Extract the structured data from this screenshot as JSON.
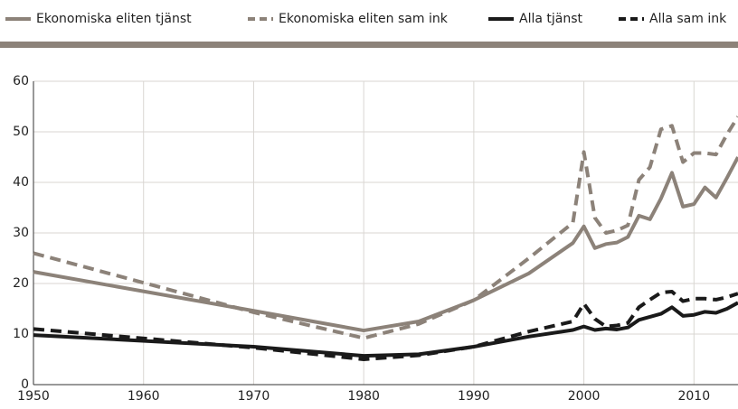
{
  "chart_data": {
    "type": "line",
    "x": [
      1950,
      1970,
      1980,
      1985,
      1990,
      1995,
      1999,
      2000,
      2001,
      2002,
      2003,
      2004,
      2005,
      2006,
      2007,
      2008,
      2009,
      2010,
      2011,
      2012,
      2013,
      2014
    ],
    "series": [
      {
        "name": "Ekonomiska eliten tjänst",
        "color": "#8c8279",
        "dashed": false,
        "values": [
          22.3,
          14.6,
          10.7,
          12.5,
          16.7,
          22,
          28,
          31.3,
          27,
          27.8,
          28.1,
          29.2,
          33.4,
          32.7,
          36.8,
          41.9,
          35.2,
          35.7,
          39,
          37,
          40.9,
          45
        ]
      },
      {
        "name": "Ekonomiska eliten sam ink",
        "color": "#8c8279",
        "dashed": true,
        "values": [
          26,
          14.3,
          9.2,
          12,
          16.7,
          25,
          32,
          46,
          33,
          30,
          30.5,
          31.5,
          40.5,
          43,
          50.5,
          51.2,
          44,
          45.8,
          45.8,
          45.5,
          49.5,
          53
        ]
      },
      {
        "name": "Alla tjänst",
        "color": "#1a1a1a",
        "dashed": false,
        "values": [
          9.8,
          7.5,
          5.7,
          6,
          7.5,
          9.5,
          10.8,
          11.5,
          10.8,
          11.1,
          10.9,
          11.3,
          12.8,
          13.4,
          14,
          15.3,
          13.6,
          13.8,
          14.4,
          14.2,
          15,
          16.2
        ]
      },
      {
        "name": "Alla sam ink",
        "color": "#1a1a1a",
        "dashed": true,
        "values": [
          11,
          7.3,
          5,
          5.8,
          7.5,
          10.5,
          12.5,
          16,
          13,
          11.5,
          11.7,
          12.2,
          15.3,
          16.8,
          18.2,
          18.4,
          16.5,
          17,
          17,
          16.8,
          17.3,
          18
        ]
      }
    ],
    "xlim": [
      1950,
      2014
    ],
    "xticks": [
      1950,
      1960,
      1970,
      1980,
      1990,
      2000,
      2010
    ],
    "ylim": [
      0,
      60
    ],
    "yticks": [
      0,
      10,
      20,
      30,
      40,
      50,
      60
    ],
    "grid": true,
    "legend": "top"
  }
}
